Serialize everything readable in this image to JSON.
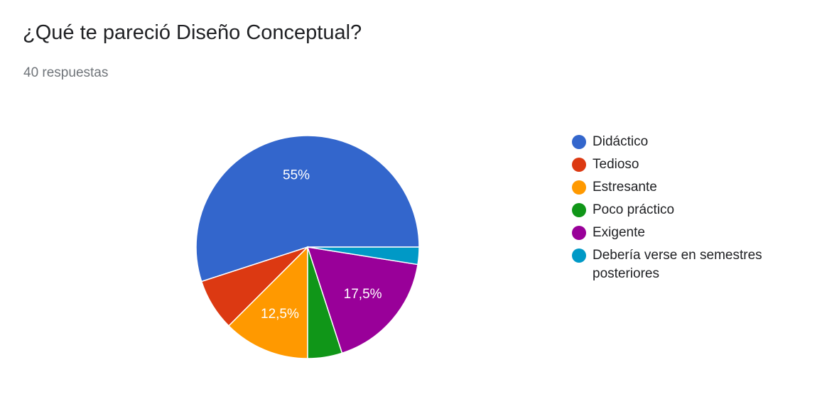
{
  "header": {
    "title": "¿Qué te pareció Diseño Conceptual?",
    "responses": "40 respuestas"
  },
  "chart_data": {
    "type": "pie",
    "total_responses": 40,
    "slices": [
      {
        "label": "Didáctico",
        "count": 22,
        "percent": 55,
        "display": "55%",
        "color": "#3366cc"
      },
      {
        "label": "Tedioso",
        "count": 3,
        "percent": 7.5,
        "display": "",
        "color": "#dc3912"
      },
      {
        "label": "Estresante",
        "count": 5,
        "percent": 12.5,
        "display": "12,5%",
        "color": "#ff9900"
      },
      {
        "label": "Poco práctico",
        "count": 2,
        "percent": 5,
        "display": "",
        "color": "#109618"
      },
      {
        "label": "Exigente",
        "count": 7,
        "percent": 17.5,
        "display": "17,5%",
        "color": "#990099"
      },
      {
        "label": "Debería verse en semestres posteriores",
        "count": 1,
        "percent": 2.5,
        "display": "",
        "color": "#0099c6"
      }
    ],
    "legend_position": "right"
  }
}
